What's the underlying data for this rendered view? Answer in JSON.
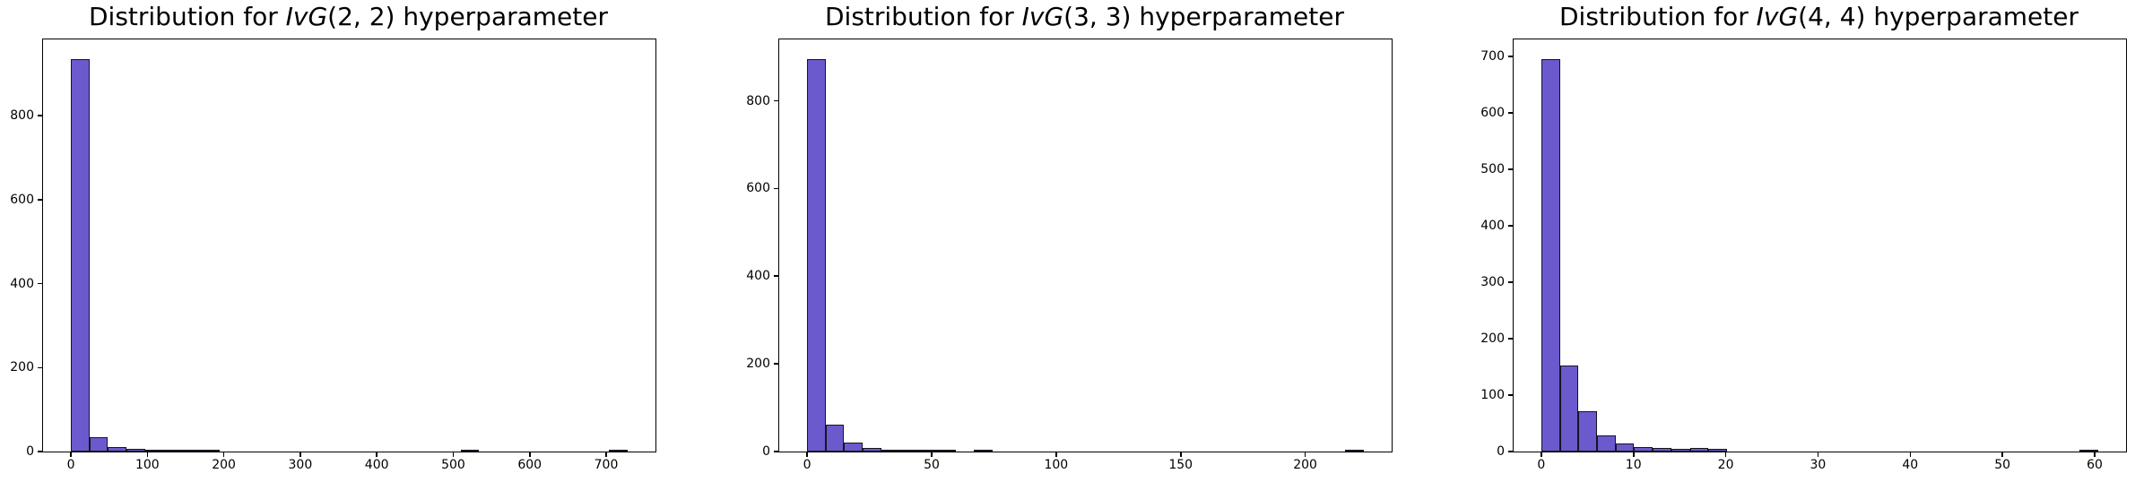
{
  "figure": {
    "background": "#ffffff",
    "text_color": "#000000",
    "bar_fill_color": "#6a5acd",
    "bar_edge_color": "#15151f",
    "axis_color": "#000000"
  },
  "chart_data": [
    {
      "type": "bar",
      "subtype": "histogram",
      "title": {
        "text": "Distribution for IvG(2, 2) hyperparameter",
        "prefix": "Distribution for ",
        "math": "IvG",
        "args": "(2, 2)",
        "suffix": " hyperparameter"
      },
      "xlabel": "",
      "ylabel": "",
      "grid": false,
      "legend_position": "none",
      "bin_start": 0,
      "bin_width": 24.27,
      "values": [
        935,
        34,
        10,
        7,
        2,
        1,
        4,
        2,
        0,
        0,
        0,
        0,
        0,
        0,
        0,
        0,
        0,
        0,
        0,
        0,
        0,
        3,
        0,
        0,
        0,
        0,
        0,
        0,
        0,
        2
      ],
      "xlim": [
        -36.4,
        764.5
      ],
      "ylim": [
        0,
        982
      ],
      "xticks": [
        0,
        100,
        200,
        300,
        400,
        500,
        600,
        700
      ],
      "yticks": [
        0,
        200,
        400,
        600,
        800
      ]
    },
    {
      "type": "bar",
      "subtype": "histogram",
      "title": {
        "text": "Distribution for IvG(3, 3) hyperparameter",
        "prefix": "Distribution for ",
        "math": "IvG",
        "args": "(3, 3)",
        "suffix": " hyperparameter"
      },
      "xlabel": "",
      "ylabel": "",
      "grid": false,
      "legend_position": "none",
      "bin_start": 0,
      "bin_width": 7.45,
      "values": [
        895,
        61,
        21,
        8,
        2,
        5,
        2,
        1,
        0,
        3,
        0,
        0,
        0,
        0,
        0,
        0,
        0,
        0,
        0,
        0,
        0,
        0,
        0,
        0,
        0,
        0,
        0,
        0,
        0,
        2
      ],
      "xlim": [
        -11.2,
        234.7
      ],
      "ylim": [
        0,
        940
      ],
      "xticks": [
        0,
        50,
        100,
        150,
        200
      ],
      "yticks": [
        0,
        200,
        400,
        600,
        800
      ]
    },
    {
      "type": "bar",
      "subtype": "histogram",
      "title": {
        "text": "Distribution for IvG(4, 4) hyperparameter",
        "prefix": "Distribution for ",
        "math": "IvG",
        "args": "(4, 4)",
        "suffix": " hyperparameter"
      },
      "xlabel": "",
      "ylabel": "",
      "grid": false,
      "legend_position": "none",
      "bin_start": 0,
      "bin_width": 2.013,
      "values": [
        695,
        152,
        71,
        28,
        15,
        8,
        6,
        5,
        6,
        5,
        0,
        0,
        0,
        0,
        0,
        0,
        0,
        0,
        0,
        0,
        0,
        0,
        0,
        0,
        0,
        0,
        0,
        0,
        0,
        1
      ],
      "xlim": [
        -3.0,
        63.4
      ],
      "ylim": [
        0,
        730
      ],
      "xticks": [
        0,
        10,
        20,
        30,
        40,
        50,
        60
      ],
      "yticks": [
        0,
        100,
        200,
        300,
        400,
        500,
        600,
        700
      ]
    }
  ]
}
